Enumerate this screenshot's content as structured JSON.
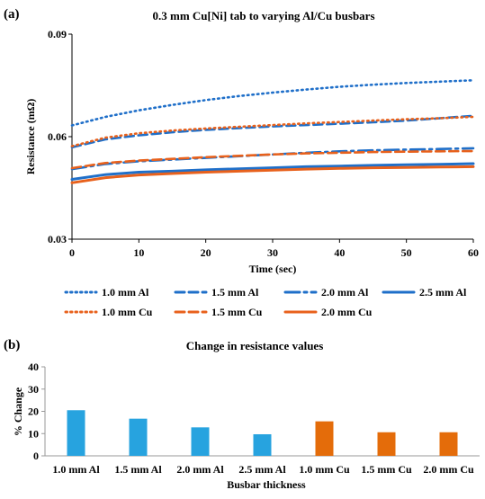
{
  "colors": {
    "al": "#1f6fc9",
    "cu": "#e8611c",
    "bar_al": "#27a3df",
    "bar_cu": "#e46c0a"
  },
  "chart_data": [
    {
      "panel_label": "(a)",
      "type": "line",
      "title": "0.3 mm Cu[Ni]  tab to varying Al/Cu busbars",
      "xlabel": "Time (sec)",
      "ylabel": "Resistance (mΩ)",
      "xlim": [
        0,
        60
      ],
      "ylim": [
        0.03,
        0.09
      ],
      "x_ticks": [
        0,
        10,
        20,
        30,
        40,
        50,
        60
      ],
      "x_tick_labels": [
        "0",
        "10",
        "20",
        "30",
        "40",
        "50",
        "60"
      ],
      "y_ticks": [
        0.03,
        0.06,
        0.09
      ],
      "y_tick_labels": [
        "0.03",
        "0.06",
        "0.09"
      ],
      "grid": false,
      "legend_position": "bottom",
      "x": [
        0,
        5,
        10,
        15,
        20,
        25,
        30,
        35,
        40,
        45,
        50,
        55,
        60
      ],
      "series": [
        {
          "name": "1.0 mm Al",
          "color": "al",
          "style": "dotted",
          "values": [
            0.0633,
            0.0658,
            0.0677,
            0.0693,
            0.0707,
            0.0719,
            0.0729,
            0.0738,
            0.0746,
            0.0752,
            0.0757,
            0.0761,
            0.0765
          ]
        },
        {
          "name": "1.5 mm Al",
          "color": "al",
          "style": "dashed",
          "values": [
            0.0569,
            0.0592,
            0.0604,
            0.0613,
            0.062,
            0.0625,
            0.063,
            0.0634,
            0.0638,
            0.0642,
            0.0647,
            0.0654,
            0.0661
          ]
        },
        {
          "name": "2.0 mm Al",
          "color": "al",
          "style": "dashdot",
          "values": [
            0.0505,
            0.052,
            0.0528,
            0.0533,
            0.0538,
            0.0543,
            0.0548,
            0.0553,
            0.0557,
            0.056,
            0.0562,
            0.0564,
            0.0566
          ]
        },
        {
          "name": "2.5 mm Al",
          "color": "al",
          "style": "solid",
          "values": [
            0.0475,
            0.0489,
            0.0496,
            0.0499,
            0.0503,
            0.0506,
            0.0509,
            0.0512,
            0.0514,
            0.0516,
            0.0518,
            0.0519,
            0.0521
          ]
        },
        {
          "name": "1.0 mm Cu",
          "color": "cu",
          "style": "dotted",
          "values": [
            0.0572,
            0.0597,
            0.061,
            0.0618,
            0.0624,
            0.0629,
            0.0634,
            0.0639,
            0.0643,
            0.0647,
            0.0651,
            0.0654,
            0.0658
          ]
        },
        {
          "name": "1.5 mm Cu",
          "color": "cu",
          "style": "dashed",
          "values": [
            0.0508,
            0.0523,
            0.053,
            0.0535,
            0.054,
            0.0544,
            0.0548,
            0.0551,
            0.0553,
            0.0555,
            0.0556,
            0.0557,
            0.0558
          ]
        },
        {
          "name": "2.0 mm Cu",
          "color": "cu",
          "style": "solid",
          "values": [
            0.0465,
            0.048,
            0.0488,
            0.0492,
            0.0496,
            0.0499,
            0.0502,
            0.0505,
            0.0507,
            0.0509,
            0.051,
            0.0511,
            0.0512
          ]
        }
      ]
    },
    {
      "panel_label": "(b)",
      "type": "bar",
      "title": "Change in resistance values",
      "xlabel": "Busbar thickness",
      "ylabel": "% Change",
      "ylim": [
        0,
        40
      ],
      "y_ticks": [
        0,
        10,
        20,
        30,
        40
      ],
      "y_tick_labels": [
        "0",
        "10",
        "20",
        "30",
        "40"
      ],
      "grid": false,
      "categories": [
        "1.0 mm Al",
        "1.5 mm Al",
        "2.0 mm Al",
        "2.5 mm Al",
        "1.0 mm Cu",
        "1.5 mm Cu",
        "2.0 mm Cu"
      ],
      "values": [
        20.5,
        16.7,
        12.8,
        9.7,
        15.5,
        10.6,
        10.6
      ],
      "bar_colors": [
        "bar_al",
        "bar_al",
        "bar_al",
        "bar_al",
        "bar_cu",
        "bar_cu",
        "bar_cu"
      ]
    }
  ]
}
